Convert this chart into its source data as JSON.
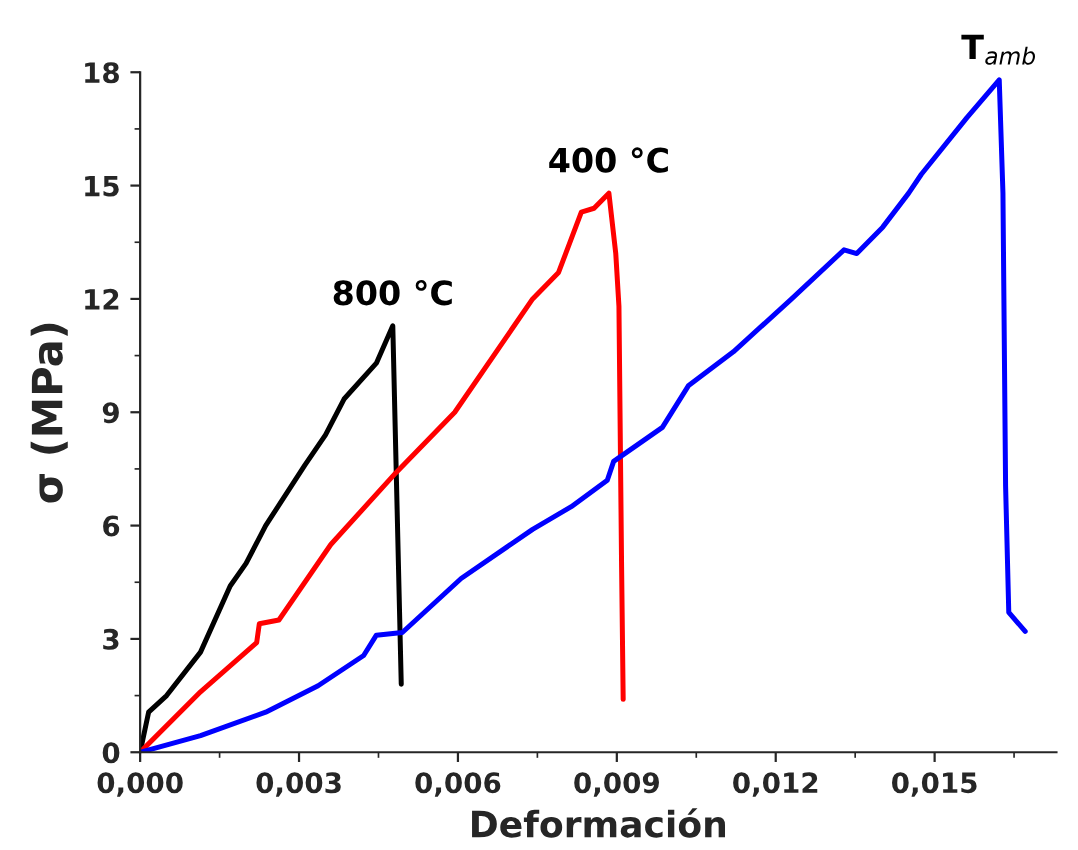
{
  "chart_data": {
    "type": "line",
    "xlabel": "Deformación",
    "ylabel": "σ (MPa)",
    "xlim": [
      0,
      0.0173
    ],
    "ylim": [
      0,
      18
    ],
    "xticks": [
      {
        "value": 0,
        "label": "0,000"
      },
      {
        "value": 0.003,
        "label": "0,003"
      },
      {
        "value": 0.006,
        "label": "0,006"
      },
      {
        "value": 0.009,
        "label": "0,009"
      },
      {
        "value": 0.012,
        "label": "0,012"
      },
      {
        "value": 0.015,
        "label": "0,015"
      }
    ],
    "yticks": [
      0,
      3,
      6,
      9,
      12,
      15,
      18
    ],
    "grid": false,
    "legend": false,
    "marker": "none",
    "line_style": "solid",
    "series": [
      {
        "name": "800 °C",
        "color": "#000000",
        "x": [
          0,
          0.00016,
          0.0005,
          0.00114,
          0.0017,
          0.002,
          0.00237,
          0.00311,
          0.0035,
          0.00385,
          0.00446,
          0.00477,
          0.00493
        ],
        "values": [
          0,
          1.06,
          1.5,
          2.65,
          4.4,
          5.0,
          6.0,
          7.6,
          8.4,
          9.35,
          10.3,
          11.29,
          1.8
        ]
      },
      {
        "name": "400 °C",
        "color": "#ff0000",
        "x": [
          0,
          0.00114,
          0.0022,
          0.00225,
          0.00262,
          0.0036,
          0.00483,
          0.00594,
          0.00741,
          0.0079,
          0.00833,
          0.00857,
          0.00885,
          0.00898,
          0.00904,
          0.00909,
          0.00912
        ],
        "values": [
          0,
          1.6,
          2.9,
          3.4,
          3.5,
          5.5,
          7.4,
          9.0,
          12.0,
          12.7,
          14.3,
          14.4,
          14.8,
          13.2,
          11.8,
          4.9,
          1.4
        ]
      },
      {
        "name": "T$_{amb}$",
        "color": "#0000ff",
        "x": [
          0,
          0.00114,
          0.00237,
          0.00336,
          0.00422,
          0.00446,
          0.00495,
          0.00606,
          0.00741,
          0.00814,
          0.00882,
          0.00894,
          0.00986,
          0.01035,
          0.0112,
          0.0123,
          0.01329,
          0.01353,
          0.01402,
          0.01451,
          0.01475,
          0.01561,
          0.01622,
          0.01629,
          0.01634,
          0.0164,
          0.01671
        ],
        "values": [
          0,
          0.44,
          1.06,
          1.76,
          2.56,
          3.1,
          3.17,
          4.6,
          5.9,
          6.5,
          7.2,
          7.7,
          8.6,
          9.7,
          10.6,
          12.0,
          13.3,
          13.2,
          13.9,
          14.8,
          15.3,
          16.8,
          17.8,
          14.8,
          7.05,
          3.7,
          3.2
        ]
      }
    ]
  }
}
